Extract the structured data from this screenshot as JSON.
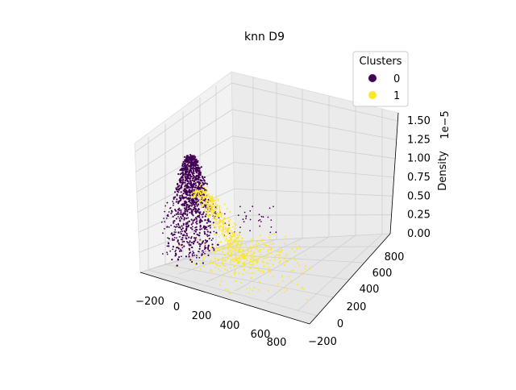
{
  "chart_data": {
    "type": "scatter",
    "projection": "3d",
    "title": "knn D9",
    "xlabel": "",
    "ylabel": "",
    "zlabel": "Density",
    "z_offset_label": "1e−5",
    "xlim": [
      -300,
      950
    ],
    "ylim": [
      -300,
      900
    ],
    "zlim": [
      0,
      1.6
    ],
    "x_ticks": [
      -200,
      0,
      200,
      400,
      600,
      800
    ],
    "y_ticks": [
      -200,
      0,
      200,
      400,
      600,
      800
    ],
    "z_ticks": [
      0.0,
      0.25,
      0.5,
      0.75,
      1.0,
      1.25,
      1.5
    ],
    "x_tick_labels": [
      "−200",
      "0",
      "200",
      "400",
      "600",
      "800"
    ],
    "y_tick_labels": [
      "−200",
      "0",
      "200",
      "400",
      "600",
      "800"
    ],
    "z_tick_labels": [
      "0.00",
      "0.25",
      "0.50",
      "0.75",
      "1.00",
      "1.25",
      "1.50"
    ],
    "grid": true,
    "legend": {
      "title": "Clusters",
      "placement": "top-right",
      "entries": [
        {
          "label": "0",
          "color": "#440154"
        },
        {
          "label": "1",
          "color": "#fde725"
        }
      ]
    },
    "series": [
      {
        "name": "0",
        "color": "#440154",
        "description_points": [
          [
            -150,
            -50,
            1.35
          ],
          [
            -130,
            -40,
            1.3
          ],
          [
            -120,
            -30,
            1.2
          ],
          [
            -140,
            -60,
            1.1
          ],
          [
            -110,
            -20,
            1.0
          ],
          [
            -100,
            -10,
            0.9
          ],
          [
            -90,
            0,
            0.8
          ],
          [
            -80,
            10,
            0.7
          ],
          [
            -70,
            20,
            0.6
          ],
          [
            -60,
            30,
            0.5
          ],
          [
            -50,
            40,
            0.4
          ],
          [
            -40,
            50,
            0.3
          ],
          [
            -160,
            -70,
            0.9
          ],
          [
            -170,
            -80,
            0.6
          ],
          [
            -180,
            -90,
            0.3
          ],
          [
            -190,
            -100,
            0.1
          ]
        ]
      },
      {
        "name": "1",
        "color": "#fde725",
        "description_points": [
          [
            50,
            80,
            0.7
          ],
          [
            100,
            120,
            0.5
          ],
          [
            150,
            160,
            0.3
          ],
          [
            200,
            200,
            0.2
          ],
          [
            250,
            250,
            0.12
          ],
          [
            300,
            300,
            0.08
          ],
          [
            350,
            350,
            0.05
          ],
          [
            400,
            400,
            0.03
          ],
          [
            500,
            450,
            0.02
          ],
          [
            600,
            500,
            0.01
          ],
          [
            700,
            550,
            0.005
          ],
          [
            800,
            600,
            0.002
          ]
        ]
      }
    ]
  }
}
